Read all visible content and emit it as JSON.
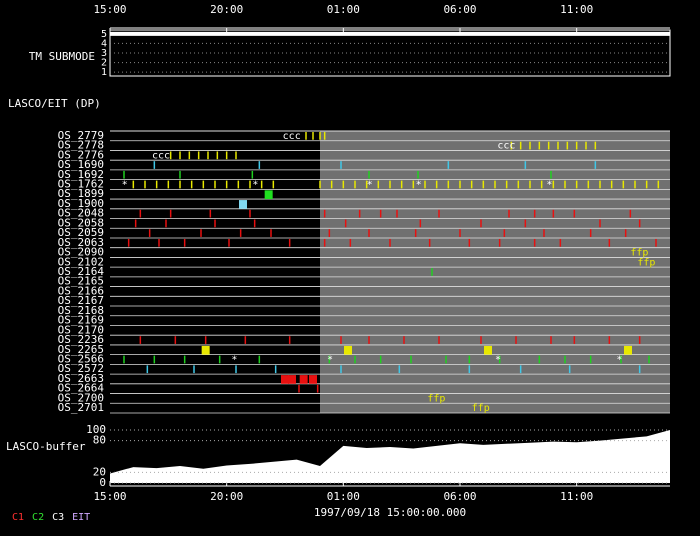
{
  "chart_data": {
    "type": "timeline",
    "time_axis": {
      "xlim": [
        15,
        39
      ],
      "xticks": [
        {
          "value": 15,
          "label": "15:00"
        },
        {
          "value": 20,
          "label": "20:00"
        },
        {
          "value": 25,
          "label": "01:00"
        },
        {
          "value": 30,
          "label": "06:00"
        },
        {
          "value": 35,
          "label": "11:00"
        }
      ]
    },
    "submode": {
      "label": "TM SUBMODE",
      "ylim": [
        0.6,
        5.4
      ],
      "yticks": [
        1,
        2,
        3,
        4,
        5
      ],
      "level": 5,
      "color": "#ffffff"
    },
    "dp_label": "LASCO/EIT (DP)",
    "shaded_from": 24,
    "rows": [
      {
        "label": "OS_2779",
        "color": "#e8e800",
        "events": [
          23.4,
          23.7,
          24.0,
          24.2
        ]
      },
      {
        "label": "OS_2778",
        "color": "#e8e800",
        "events": [
          32.2,
          32.6,
          33.0,
          33.4,
          33.8,
          34.2,
          34.6,
          35.0,
          35.4,
          35.8
        ]
      },
      {
        "label": "OS_2776",
        "color": "#e8e800",
        "events": [
          17.6,
          18.0,
          18.4,
          18.8,
          19.2,
          19.6,
          20.0,
          20.4
        ]
      },
      {
        "label": "OS_1690",
        "color": "#40c8e8",
        "events": [
          16.9,
          21.4,
          24.9,
          29.5,
          32.8,
          35.8
        ]
      },
      {
        "label": "OS_1692",
        "color": "#20d020",
        "events": [
          15.6,
          18.0,
          21.1,
          26.1,
          28.2,
          33.9
        ]
      },
      {
        "label": "OS_1762",
        "color": "#e8e800",
        "events": [
          16,
          16.5,
          17,
          17.5,
          18,
          18.5,
          19,
          19.5,
          20,
          20.5,
          21,
          21.5,
          22,
          24,
          24.5,
          25,
          25.5,
          26,
          26.5,
          27,
          27.5,
          28,
          28.5,
          29,
          29.5,
          30,
          30.5,
          31,
          31.5,
          32,
          32.5,
          33,
          33.5,
          34,
          34.5,
          35,
          35.5,
          36,
          36.5,
          37,
          37.5,
          38,
          38.5
        ]
      },
      {
        "label": "OS_1899",
        "color": "#20e020",
        "block": true,
        "events": [
          21.8
        ]
      },
      {
        "label": "OS_1900",
        "color": "#80d8f0",
        "block": true,
        "events": [
          20.7
        ]
      },
      {
        "label": "OS_2048",
        "color": "#e81010",
        "events": [
          16.3,
          17.6,
          19.3,
          21.0,
          24.2,
          25.7,
          26.6,
          27.3,
          29.1,
          32.1,
          33.2,
          34.0,
          34.9,
          37.3
        ]
      },
      {
        "label": "OS_2058",
        "color": "#e81010",
        "events": [
          16.1,
          17.4,
          19.5,
          21.2,
          25.1,
          28.3,
          30.9,
          32.8,
          36.0,
          37.7
        ]
      },
      {
        "label": "OS_2059",
        "color": "#e81010",
        "events": [
          16.7,
          18.9,
          20.6,
          21.9,
          24.4,
          26.1,
          28.1,
          30.0,
          31.9,
          33.6,
          35.6,
          37.1
        ]
      },
      {
        "label": "OS_2063",
        "color": "#e81010",
        "events": [
          15.8,
          17.1,
          18.2,
          20.1,
          22.7,
          24.2,
          25.3,
          27.0,
          28.7,
          30.4,
          31.7,
          33.2,
          34.3,
          36.4,
          38.4
        ]
      },
      {
        "label": "OS_2090",
        "color": "#e81010",
        "events": []
      },
      {
        "label": "OS_2102",
        "color": "#e81010",
        "events": []
      },
      {
        "label": "OS_2164",
        "color": "#20d020",
        "events": [
          28.8
        ]
      },
      {
        "label": "OS_2165",
        "color": "#20d020",
        "events": []
      },
      {
        "label": "OS_2166",
        "color": "#20d020",
        "events": []
      },
      {
        "label": "OS_2167",
        "color": "#20d020",
        "events": []
      },
      {
        "label": "OS_2168",
        "color": "#20d020",
        "events": []
      },
      {
        "label": "OS_2169",
        "color": "#20d020",
        "events": []
      },
      {
        "label": "OS_2170",
        "color": "#20d020",
        "events": []
      },
      {
        "label": "OS_2236",
        "color": "#e81010",
        "events": [
          16.3,
          17.8,
          19.1,
          20.8,
          22.7,
          24.9,
          26.1,
          27.6,
          29.1,
          30.9,
          32.4,
          33.9,
          34.9,
          36.4,
          37.7
        ]
      },
      {
        "label": "OS_2265",
        "color": "#e8e800",
        "block": true,
        "events": [
          19.1,
          25.2,
          31.2,
          37.2
        ]
      },
      {
        "label": "OS_2566",
        "color": "#20d020",
        "events": [
          15.6,
          16.9,
          18.2,
          19.7,
          21.4,
          24.4,
          25.5,
          26.6,
          27.9,
          29.4,
          30.4,
          31.7,
          33.4,
          34.5,
          35.6,
          36.9,
          38.1
        ]
      },
      {
        "label": "OS_2572",
        "color": "#40c8e8",
        "events": [
          16.6,
          18.6,
          20.4,
          22.1,
          24.9,
          27.4,
          30.4,
          32.6,
          34.7,
          37.7
        ]
      },
      {
        "label": "OS_2663",
        "color": "#e81010",
        "block": true,
        "events": [
          22.5,
          22.8,
          23.3,
          23.7
        ]
      },
      {
        "label": "OS_2664",
        "color": "#e81010",
        "events": [
          23.1,
          23.9
        ]
      },
      {
        "label": "OS_2700",
        "color": "#e81010",
        "events": []
      },
      {
        "label": "OS_2701",
        "color": "#e81010",
        "events": []
      }
    ],
    "annotations": [
      {
        "text": "ccc",
        "t": 22.4,
        "row": 0,
        "color": "#ffffff"
      },
      {
        "text": "ccc",
        "t": 31.6,
        "row": 1,
        "color": "#ffffff"
      },
      {
        "text": "ccc",
        "t": 16.8,
        "row": 2,
        "color": "#ffffff"
      },
      {
        "text": "*",
        "t": 15.5,
        "row": 5,
        "color": "#ffffff"
      },
      {
        "text": "*",
        "t": 21.1,
        "row": 5,
        "color": "#ffffff"
      },
      {
        "text": "*",
        "t": 26.0,
        "row": 5,
        "color": "#ffffff"
      },
      {
        "text": "*",
        "t": 28.1,
        "row": 5,
        "color": "#ffffff"
      },
      {
        "text": "*",
        "t": 33.7,
        "row": 5,
        "color": "#ffffff"
      },
      {
        "text": "ffp",
        "t": 37.3,
        "row": 12,
        "color": "#e8e800"
      },
      {
        "text": "ffp",
        "t": 37.6,
        "row": 13,
        "color": "#e8e800"
      },
      {
        "text": "*",
        "t": 20.2,
        "row": 23,
        "color": "#ffffff"
      },
      {
        "text": "*",
        "t": 24.3,
        "row": 23,
        "color": "#ffffff"
      },
      {
        "text": "*",
        "t": 31.5,
        "row": 23,
        "color": "#ffffff"
      },
      {
        "text": "*",
        "t": 36.7,
        "row": 23,
        "color": "#ffffff"
      },
      {
        "text": "ffp",
        "t": 28.6,
        "row": 27,
        "color": "#e8e800"
      },
      {
        "text": "ffp",
        "t": 30.5,
        "row": 28,
        "color": "#e8e800"
      }
    ],
    "buffer": {
      "label": "LASCO-buffer",
      "ylim": [
        0,
        100
      ],
      "yticks": [
        0,
        20,
        80,
        100
      ],
      "color": "#ffffff",
      "x": [
        15,
        16,
        17,
        18,
        19,
        20,
        21,
        22,
        23,
        24,
        25,
        26,
        27,
        28,
        29,
        30,
        31,
        32,
        33,
        34,
        35,
        36,
        37,
        38,
        39
      ],
      "values": [
        18,
        30,
        28,
        32,
        27,
        33,
        36,
        40,
        44,
        32,
        70,
        66,
        68,
        65,
        70,
        75,
        72,
        74,
        76,
        78,
        77,
        80,
        84,
        88,
        100
      ]
    },
    "date": "1997/09/18 15:00:00.000",
    "legend": [
      {
        "name": "C1",
        "color": "#ff3030"
      },
      {
        "name": "C2",
        "color": "#30e030"
      },
      {
        "name": "C3",
        "color": "#ffffff"
      },
      {
        "name": "EIT",
        "color": "#d0a8ff"
      }
    ]
  }
}
